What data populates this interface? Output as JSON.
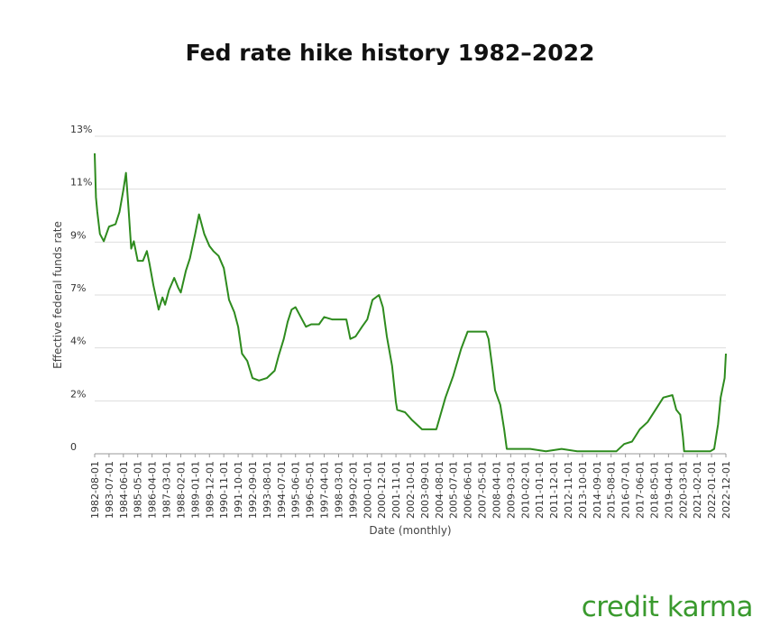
{
  "page_title": "Fed rate hike history 1982–2022",
  "brand": {
    "name": "credit karma",
    "color": "#3a9a2e"
  },
  "chart_data": {
    "type": "line",
    "title": "Fed rate hike history 1982–2022",
    "xlabel": "Date (monthly)",
    "ylabel": "Effective federal funds rate",
    "y_tick_labels": [
      "0",
      "2%",
      "4%",
      "7%",
      "9%",
      "11%",
      "13%"
    ],
    "ylim": [
      0,
      13
    ],
    "x_tick_labels": [
      "1982-08-01",
      "1983-07-01",
      "1984-06-01",
      "1985-05-01",
      "1986-04-01",
      "1987-03-01",
      "1988-02-01",
      "1989-01-01",
      "1989-12-01",
      "1990-11-01",
      "1991-10-01",
      "1992-09-01",
      "1993-08-01",
      "1994-07-01",
      "1995-06-01",
      "1996-05-01",
      "1997-04-01",
      "1998-03-01",
      "1999-02-01",
      "2000-01-01",
      "2000-12-01",
      "2001-11-01",
      "2002-10-01",
      "2003-09-01",
      "2004-08-01",
      "2005-07-01",
      "2006-06-01",
      "2007-05-01",
      "2008-04-01",
      "2009-03-01",
      "2010-02-01",
      "2011-01-01",
      "2011-12-01",
      "2012-11-01",
      "2013-10-01",
      "2014-09-01",
      "2015-08-01",
      "2016-07-01",
      "2017-06-01",
      "2018-05-01",
      "2019-04-01",
      "2020-03-01",
      "2021-02-01",
      "2022-01-01",
      "2022-12-01"
    ],
    "grid": true,
    "legend": "none",
    "line_color": "#2e8b1e",
    "series": [
      {
        "x": [
          "1982-08-01",
          "1982-09-01",
          "1982-10-01",
          "1982-12-01",
          "1983-03-01",
          "1983-07-01",
          "1983-12-01",
          "1984-03-01",
          "1984-06-01",
          "1984-08-01",
          "1984-10-01",
          "1984-12-01",
          "1985-02-01",
          "1985-05-01",
          "1985-09-01",
          "1985-12-01",
          "1986-02-01",
          "1986-05-01",
          "1986-09-01",
          "1986-12-01",
          "1987-02-01",
          "1987-05-01",
          "1987-09-01",
          "1987-12-01",
          "1988-02-01",
          "1988-06-01",
          "1988-09-01",
          "1989-01-01",
          "1989-04-01",
          "1989-08-01",
          "1989-12-01",
          "1990-03-01",
          "1990-07-01",
          "1990-11-01",
          "1991-03-01",
          "1991-07-01",
          "1991-10-01",
          "1992-01-01",
          "1992-05-01",
          "1992-09-01",
          "1993-02-01",
          "1993-08-01",
          "1994-02-01",
          "1994-05-01",
          "1994-09-01",
          "1994-12-01",
          "1995-03-01",
          "1995-06-01",
          "1995-09-01",
          "1996-02-01",
          "1996-06-01",
          "1996-12-01",
          "1997-04-01",
          "1997-10-01",
          "1998-03-01",
          "1998-09-01",
          "1998-12-01",
          "1999-04-01",
          "1999-09-01",
          "2000-01-01",
          "2000-05-01",
          "2000-10-01",
          "2001-01-01",
          "2001-04-01",
          "2001-08-01",
          "2001-11-01",
          "2001-12-01",
          "2002-06-01",
          "2002-11-01",
          "2003-03-01",
          "2003-07-01",
          "2004-03-01",
          "2004-06-01",
          "2005-01-01",
          "2005-07-01",
          "2006-01-01",
          "2006-06-01",
          "2007-01-01",
          "2007-08-01",
          "2007-10-01",
          "2008-01-01",
          "2008-03-01",
          "2008-07-01",
          "2008-10-01",
          "2008-12-01",
          "2009-06-01",
          "2010-06-01",
          "2011-06-01",
          "2012-06-01",
          "2013-06-01",
          "2014-06-01",
          "2015-06-01",
          "2015-12-01",
          "2016-06-01",
          "2016-12-01",
          "2017-06-01",
          "2017-12-01",
          "2018-06-01",
          "2018-12-01",
          "2019-07-01",
          "2019-10-01",
          "2020-01-01",
          "2020-03-01",
          "2020-04-01",
          "2021-01-01",
          "2021-12-01",
          "2022-03-01",
          "2022-06-01",
          "2022-08-01",
          "2022-11-01",
          "2022-12-01"
        ],
        "y": [
          12.3,
          10.5,
          9.9,
          9.0,
          8.7,
          9.3,
          9.4,
          9.9,
          10.8,
          11.5,
          10.0,
          8.4,
          8.7,
          7.9,
          7.9,
          8.3,
          7.8,
          6.9,
          5.9,
          6.4,
          6.1,
          6.7,
          7.2,
          6.8,
          6.6,
          7.5,
          8.0,
          9.0,
          9.8,
          9.0,
          8.5,
          8.3,
          8.1,
          7.6,
          6.3,
          5.8,
          5.2,
          4.1,
          3.8,
          3.1,
          3.0,
          3.1,
          3.4,
          4.0,
          4.7,
          5.4,
          5.9,
          6.0,
          5.7,
          5.2,
          5.3,
          5.3,
          5.6,
          5.5,
          5.5,
          5.5,
          4.7,
          4.8,
          5.2,
          5.5,
          6.3,
          6.5,
          6.0,
          4.8,
          3.6,
          2.1,
          1.8,
          1.7,
          1.4,
          1.2,
          1.0,
          1.0,
          1.0,
          2.3,
          3.2,
          4.3,
          5.0,
          5.0,
          5.0,
          4.7,
          3.5,
          2.6,
          2.0,
          1.0,
          0.2,
          0.2,
          0.2,
          0.1,
          0.2,
          0.1,
          0.1,
          0.1,
          0.1,
          0.4,
          0.5,
          1.0,
          1.3,
          1.8,
          2.3,
          2.4,
          1.8,
          1.6,
          0.7,
          0.1,
          0.1,
          0.1,
          0.2,
          1.2,
          2.3,
          3.1,
          4.1
        ]
      }
    ]
  }
}
